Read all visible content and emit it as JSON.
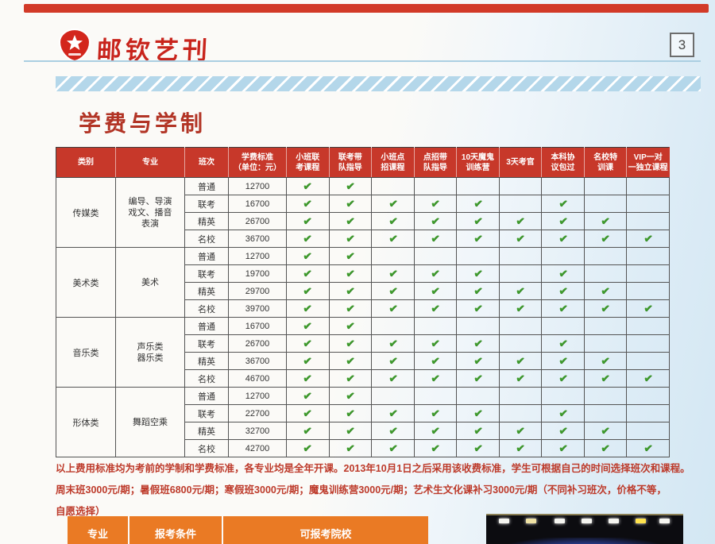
{
  "masthead": {
    "title": "邮钦艺刊",
    "page_number": "3"
  },
  "page_title": "学费与学制",
  "icons": {
    "check": "✔",
    "star": "★"
  },
  "colors": {
    "header_red": "#c7382a",
    "check_green": "#3f9c2d",
    "orange": "#ea7a24",
    "title_red": "#b23425",
    "banner_blue": "#b4d7ea"
  },
  "tuition_table": {
    "headers": [
      "类别",
      "专业",
      "班次",
      "学费标准\n（单位：元）",
      "小班联\n考课程",
      "联考带\n队指导",
      "小班点\n招课程",
      "点招带\n队指导",
      "10天魔鬼\n训练营",
      "3天考官",
      "本科协\n议包过",
      "名校特\n训课",
      "VIP一对\n一独立课程"
    ],
    "categories": [
      {
        "name": "传媒类",
        "major": "编导、导演\n戏文、播音\n表演",
        "rows": [
          {
            "tier": "普通",
            "fee": "12700",
            "checks": [
              1,
              1,
              0,
              0,
              0,
              0,
              0,
              0,
              0
            ]
          },
          {
            "tier": "联考",
            "fee": "16700",
            "checks": [
              1,
              1,
              1,
              1,
              1,
              0,
              1,
              0,
              0
            ]
          },
          {
            "tier": "精英",
            "fee": "26700",
            "checks": [
              1,
              1,
              1,
              1,
              1,
              1,
              1,
              1,
              0
            ]
          },
          {
            "tier": "名校",
            "fee": "36700",
            "checks": [
              1,
              1,
              1,
              1,
              1,
              1,
              1,
              1,
              1
            ]
          }
        ]
      },
      {
        "name": "美术类",
        "major": "美术",
        "rows": [
          {
            "tier": "普通",
            "fee": "12700",
            "checks": [
              1,
              1,
              0,
              0,
              0,
              0,
              0,
              0,
              0
            ]
          },
          {
            "tier": "联考",
            "fee": "19700",
            "checks": [
              1,
              1,
              1,
              1,
              1,
              0,
              1,
              0,
              0
            ]
          },
          {
            "tier": "精英",
            "fee": "29700",
            "checks": [
              1,
              1,
              1,
              1,
              1,
              1,
              1,
              1,
              0
            ]
          },
          {
            "tier": "名校",
            "fee": "39700",
            "checks": [
              1,
              1,
              1,
              1,
              1,
              1,
              1,
              1,
              1
            ]
          }
        ]
      },
      {
        "name": "音乐类",
        "major": "声乐类\n器乐类",
        "rows": [
          {
            "tier": "普通",
            "fee": "16700",
            "checks": [
              1,
              1,
              0,
              0,
              0,
              0,
              0,
              0,
              0
            ]
          },
          {
            "tier": "联考",
            "fee": "26700",
            "checks": [
              1,
              1,
              1,
              1,
              1,
              0,
              1,
              0,
              0
            ]
          },
          {
            "tier": "精英",
            "fee": "36700",
            "checks": [
              1,
              1,
              1,
              1,
              1,
              1,
              1,
              1,
              0
            ]
          },
          {
            "tier": "名校",
            "fee": "46700",
            "checks": [
              1,
              1,
              1,
              1,
              1,
              1,
              1,
              1,
              1
            ]
          }
        ]
      },
      {
        "name": "形体类",
        "major": "舞蹈空乘",
        "rows": [
          {
            "tier": "普通",
            "fee": "12700",
            "checks": [
              1,
              1,
              0,
              0,
              0,
              0,
              0,
              0,
              0
            ]
          },
          {
            "tier": "联考",
            "fee": "22700",
            "checks": [
              1,
              1,
              1,
              1,
              1,
              0,
              1,
              0,
              0
            ]
          },
          {
            "tier": "精英",
            "fee": "32700",
            "checks": [
              1,
              1,
              1,
              1,
              1,
              1,
              1,
              1,
              0
            ]
          },
          {
            "tier": "名校",
            "fee": "42700",
            "checks": [
              1,
              1,
              1,
              1,
              1,
              1,
              1,
              1,
              1
            ]
          }
        ]
      }
    ]
  },
  "notes": {
    "lines": [
      "以上费用标准均为考前的学制和学费标准，各专业均是全年开课。2013年10月1日之后采用该收费标准，学生可根据自己的时间选择班次和课程。",
      "周末班3000元/期；暑假班6800元/期；寒假班3000元/期；魔鬼训练营3000元/期；艺术生文化课补习3000元/期（不同补习班次，价格不等，",
      "自愿选择）"
    ]
  },
  "bottom_table": {
    "headers": [
      "专业",
      "报考条件",
      "可报考院校"
    ]
  }
}
